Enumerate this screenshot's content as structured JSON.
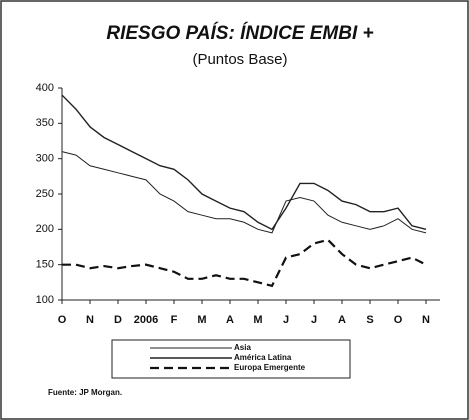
{
  "chart_data": {
    "type": "line",
    "title": "RIESGO PAÍS: ÍNDICE EMBI +",
    "subtitle": "(Puntos Base)",
    "source": "Fuente: JP Morgan.",
    "categories": [
      "O",
      null,
      "N",
      null,
      "D",
      null,
      "2006",
      null,
      "F",
      null,
      "M",
      null,
      "A",
      null,
      "M",
      null,
      "J",
      null,
      "J",
      null,
      "A",
      null,
      "S",
      null,
      "O",
      null,
      "N"
    ],
    "series": [
      {
        "name": "Asia",
        "color": "#222222",
        "style": "solid",
        "values": [
          310,
          305,
          290,
          285,
          280,
          275,
          270,
          250,
          240,
          225,
          220,
          215,
          215,
          210,
          200,
          195,
          240,
          245,
          240,
          220,
          210,
          205,
          200,
          205,
          215,
          200,
          195
        ]
      },
      {
        "name": "América Latina",
        "color": "#222222",
        "style": "double",
        "values": [
          390,
          370,
          345,
          330,
          320,
          310,
          300,
          290,
          285,
          270,
          250,
          240,
          230,
          225,
          210,
          200,
          230,
          265,
          265,
          255,
          240,
          235,
          225,
          225,
          230,
          205,
          200
        ]
      },
      {
        "name": "Europa Emergente",
        "color": "#111111",
        "style": "dashed",
        "values": [
          150,
          150,
          145,
          148,
          145,
          148,
          150,
          145,
          140,
          130,
          130,
          135,
          130,
          130,
          125,
          120,
          160,
          165,
          180,
          185,
          165,
          150,
          145,
          150,
          155,
          160,
          150
        ]
      }
    ],
    "ylim": [
      100,
      400
    ],
    "yticks": [
      100,
      150,
      200,
      250,
      300,
      350,
      400
    ]
  }
}
